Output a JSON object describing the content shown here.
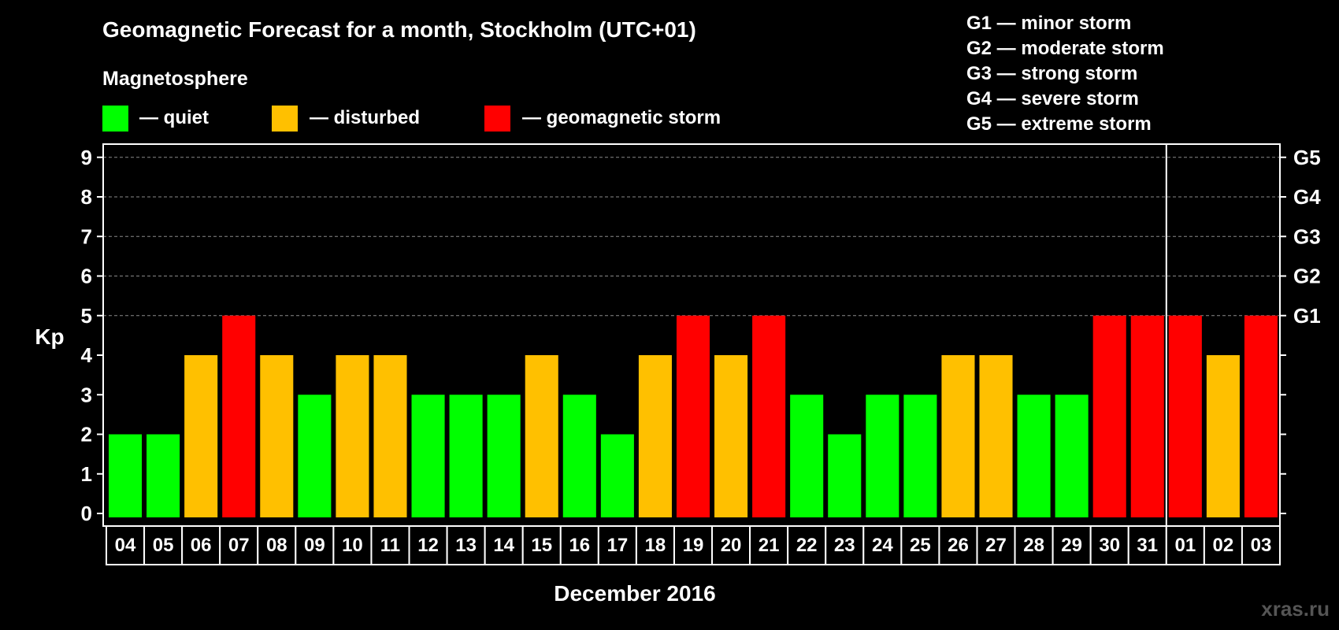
{
  "colors": {
    "quiet": "#00ff00",
    "disturbed": "#ffc000",
    "storm": "#ff0000",
    "background": "#000000",
    "text": "#ffffff"
  },
  "header": {
    "title": "Geomagnetic Forecast for a month, Stockholm (UTC+01)",
    "subtitle": "Magnetosphere"
  },
  "legend": [
    {
      "key": "quiet",
      "label": "— quiet"
    },
    {
      "key": "disturbed",
      "label": "— disturbed"
    },
    {
      "key": "storm",
      "label": "— geomagnetic storm"
    }
  ],
  "storm_scale": [
    "G1 — minor storm",
    "G2 — moderate storm",
    "G3 — strong storm",
    "G4 — severe storm",
    "G5 — extreme storm"
  ],
  "watermark": "xras.ru",
  "chart_data": {
    "type": "bar",
    "title": "Geomagnetic Forecast for a month, Stockholm (UTC+01)",
    "xlabel": "December 2016",
    "ylabel": "Kp",
    "ylim": [
      0,
      9
    ],
    "yticks": [
      0,
      1,
      2,
      3,
      4,
      5,
      6,
      7,
      8,
      9
    ],
    "right_axis_labels": [
      {
        "value": 5,
        "label": "G1"
      },
      {
        "value": 6,
        "label": "G2"
      },
      {
        "value": 7,
        "label": "G3"
      },
      {
        "value": 8,
        "label": "G4"
      },
      {
        "value": 9,
        "label": "G5"
      }
    ],
    "grid": "dashed horizontal at 5-9",
    "month_divider_after": "31",
    "categories": [
      "04",
      "05",
      "06",
      "07",
      "08",
      "09",
      "10",
      "11",
      "12",
      "13",
      "14",
      "15",
      "16",
      "17",
      "18",
      "19",
      "20",
      "21",
      "22",
      "23",
      "24",
      "25",
      "26",
      "27",
      "28",
      "29",
      "30",
      "31",
      "01",
      "02",
      "03"
    ],
    "values": [
      2,
      2,
      4,
      5,
      4,
      3,
      4,
      4,
      3,
      3,
      3,
      4,
      3,
      2,
      4,
      5,
      4,
      5,
      3,
      2,
      3,
      3,
      4,
      4,
      3,
      3,
      5,
      5,
      5,
      4,
      5
    ]
  }
}
